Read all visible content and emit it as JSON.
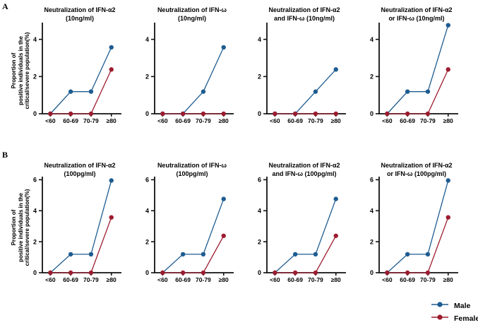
{
  "figure": {
    "panel_labels": {
      "a": "A",
      "b": "B"
    },
    "ylabel_lines": [
      "Proportion of",
      "positive individuals in the",
      "critical/severe population(%)"
    ],
    "legend": [
      {
        "label": "Male",
        "color": "#1e5c91"
      },
      {
        "label": "Female",
        "color": "#9c1c2e"
      }
    ],
    "colors": {
      "axis": "#111111",
      "background": "#ffffff",
      "male": "#1e5c91",
      "female": "#9c1c2e"
    }
  },
  "chart_data": [
    {
      "panel": "A1",
      "type": "line",
      "title": "Neutralization of IFN-α2",
      "subtitle": "(10ng/ml)",
      "categories": [
        "<60",
        "60-69",
        "70-79",
        "≥80"
      ],
      "xlabel": "",
      "ylabel": "Proportion of positive individuals in the critical/severe population(%)",
      "ylim": [
        0,
        4.9
      ],
      "yticks": [
        0,
        2,
        4
      ],
      "grid": false,
      "series": [
        {
          "name": "Male",
          "color": "#1e5c91",
          "values": [
            0,
            1.19,
            1.19,
            3.57
          ]
        },
        {
          "name": "Female",
          "color": "#9c1c2e",
          "values": [
            0,
            0,
            0,
            2.38
          ]
        }
      ]
    },
    {
      "panel": "A2",
      "type": "line",
      "title": "Neutralization of IFN-ω",
      "subtitle": "(10ng/ml)",
      "categories": [
        "<60",
        "60-69",
        "70-79",
        "≥80"
      ],
      "ylim": [
        0,
        4.9
      ],
      "yticks": [
        0,
        2,
        4
      ],
      "grid": false,
      "series": [
        {
          "name": "Male",
          "color": "#1e5c91",
          "values": [
            0,
            0,
            1.19,
            3.57
          ]
        },
        {
          "name": "Female",
          "color": "#9c1c2e",
          "values": [
            0,
            0,
            0,
            0
          ]
        }
      ]
    },
    {
      "panel": "A3",
      "type": "line",
      "title": "Neutralization of IFN-α2",
      "subtitle": "and IFN-ω (10ng/ml)",
      "categories": [
        "<60",
        "60-69",
        "70-79",
        "≥80"
      ],
      "ylim": [
        0,
        4.9
      ],
      "yticks": [
        0,
        2,
        4
      ],
      "grid": false,
      "series": [
        {
          "name": "Male",
          "color": "#1e5c91",
          "values": [
            0,
            0,
            1.19,
            2.38
          ]
        },
        {
          "name": "Female",
          "color": "#9c1c2e",
          "values": [
            0,
            0,
            0,
            0
          ]
        }
      ]
    },
    {
      "panel": "A4",
      "type": "line",
      "title": "Neutralization of IFN-α2",
      "subtitle": "or IFN-ω (10ng/ml)",
      "categories": [
        "<60",
        "60-69",
        "70-79",
        "≥80"
      ],
      "ylim": [
        0,
        4.9
      ],
      "yticks": [
        0,
        2,
        4
      ],
      "grid": false,
      "series": [
        {
          "name": "Male",
          "color": "#1e5c91",
          "values": [
            0,
            1.19,
            1.19,
            4.76
          ]
        },
        {
          "name": "Female",
          "color": "#9c1c2e",
          "values": [
            0,
            0,
            0,
            2.38
          ]
        }
      ]
    },
    {
      "panel": "B1",
      "type": "line",
      "title": "Neutralization of IFN-α2",
      "subtitle": "(100pg/ml)",
      "categories": [
        "<60",
        "60-69",
        "70-79",
        "≥80"
      ],
      "ylim": [
        0,
        6.2
      ],
      "yticks": [
        0,
        2,
        4,
        6
      ],
      "grid": false,
      "series": [
        {
          "name": "Male",
          "color": "#1e5c91",
          "values": [
            0,
            1.19,
            1.19,
            5.95
          ]
        },
        {
          "name": "Female",
          "color": "#9c1c2e",
          "values": [
            0,
            0,
            0,
            3.57
          ]
        }
      ]
    },
    {
      "panel": "B2",
      "type": "line",
      "title": "Neutralization of IFN-ω",
      "subtitle": "(100pg/ml)",
      "categories": [
        "<60",
        "60-69",
        "70-79",
        "≥80"
      ],
      "ylim": [
        0,
        6.2
      ],
      "yticks": [
        0,
        2,
        4,
        6
      ],
      "grid": false,
      "series": [
        {
          "name": "Male",
          "color": "#1e5c91",
          "values": [
            0,
            1.19,
            1.19,
            4.76
          ]
        },
        {
          "name": "Female",
          "color": "#9c1c2e",
          "values": [
            0,
            0,
            0,
            2.38
          ]
        }
      ]
    },
    {
      "panel": "B3",
      "type": "line",
      "title": "Neutralization of IFN-α2",
      "subtitle": "and IFN-ω (100pg/ml)",
      "categories": [
        "<60",
        "60-69",
        "70-79",
        "≥80"
      ],
      "ylim": [
        0,
        6.2
      ],
      "yticks": [
        0,
        2,
        4,
        6
      ],
      "grid": false,
      "series": [
        {
          "name": "Male",
          "color": "#1e5c91",
          "values": [
            0,
            1.19,
            1.19,
            4.76
          ]
        },
        {
          "name": "Female",
          "color": "#9c1c2e",
          "values": [
            0,
            0,
            0,
            2.38
          ]
        }
      ]
    },
    {
      "panel": "B4",
      "type": "line",
      "title": "Neutralization of IFN-α2",
      "subtitle": "or IFN-ω (100pg/ml)",
      "categories": [
        "<60",
        "60-69",
        "70-79",
        "≥80"
      ],
      "ylim": [
        0,
        6.2
      ],
      "yticks": [
        0,
        2,
        4,
        6
      ],
      "grid": false,
      "series": [
        {
          "name": "Male",
          "color": "#1e5c91",
          "values": [
            0,
            1.19,
            1.19,
            5.95
          ]
        },
        {
          "name": "Female",
          "color": "#9c1c2e",
          "values": [
            0,
            0,
            0,
            3.57
          ]
        }
      ]
    }
  ]
}
